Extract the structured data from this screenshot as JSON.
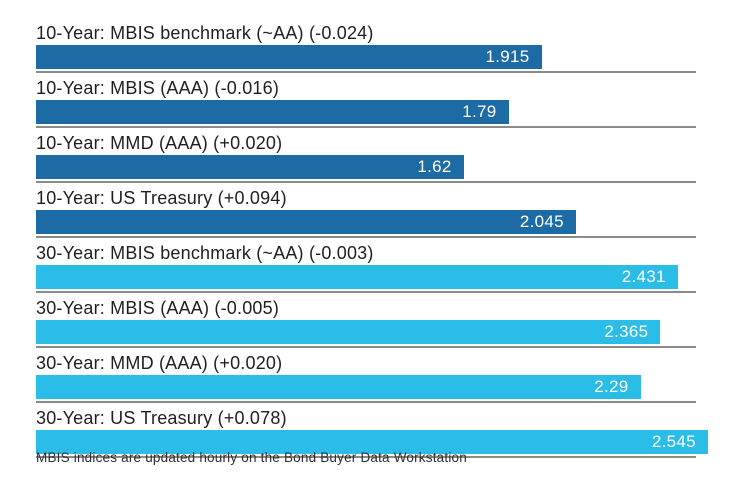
{
  "chart_data": {
    "type": "bar",
    "orientation": "horizontal",
    "axis": {
      "min": 0,
      "gridline_max": 2.5,
      "grid": "row-divider-lines",
      "legend": "none"
    },
    "colors": {
      "ten_year": "#1d6ba5",
      "thirty_year": "#29bde8",
      "divider": "#8a8a8a",
      "label_text": "#1f1f1f",
      "value_text": "#ffffff"
    },
    "bars": [
      {
        "label": "10-Year: MBIS benchmark (~AA) (-0.024)",
        "value": 1.915,
        "display_value": "1.915",
        "delta": "-0.024",
        "group": "ten_year"
      },
      {
        "label": "10-Year: MBIS (AAA) (-0.016)",
        "value": 1.79,
        "display_value": "1.79",
        "delta": "-0.016",
        "group": "ten_year"
      },
      {
        "label": "10-Year: MMD (AAA) (+0.020)",
        "value": 1.62,
        "display_value": "1.62",
        "delta": "+0.020",
        "group": "ten_year"
      },
      {
        "label": "10-Year: US Treasury (+0.094)",
        "value": 2.045,
        "display_value": "2.045",
        "delta": "+0.094",
        "group": "ten_year"
      },
      {
        "label": "30-Year: MBIS benchmark (~AA) (-0.003)",
        "value": 2.431,
        "display_value": "2.431",
        "delta": "-0.003",
        "group": "thirty_year"
      },
      {
        "label": "30-Year: MBIS (AAA) (-0.005)",
        "value": 2.365,
        "display_value": "2.365",
        "delta": "-0.005",
        "group": "thirty_year"
      },
      {
        "label": "30-Year: MMD (AAA) (+0.020)",
        "value": 2.29,
        "display_value": "2.29",
        "delta": "+0.020",
        "group": "thirty_year"
      },
      {
        "label": "30-Year: US Treasury (+0.078)",
        "value": 2.545,
        "display_value": "2.545",
        "delta": "+0.078",
        "group": "thirty_year"
      }
    ],
    "footnote": "MBIS indices are updated hourly on the Bond Buyer Data Workstation"
  }
}
